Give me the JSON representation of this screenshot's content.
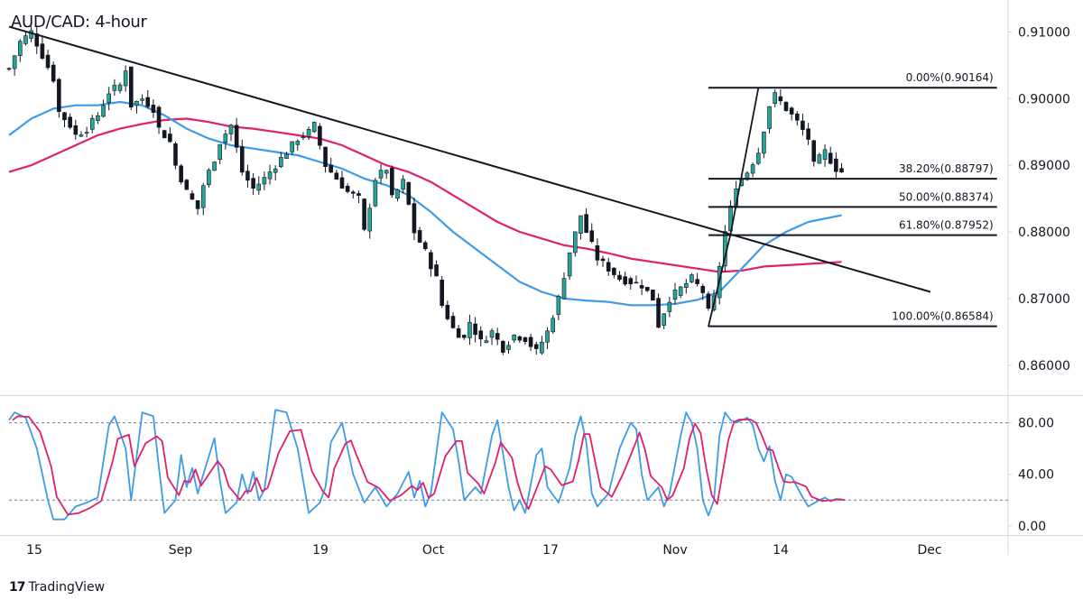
{
  "title": "AUD/CAD: 4-hour",
  "brand": {
    "icon": "tradingview-logo-icon",
    "name": "TradingView"
  },
  "colors": {
    "up": "#26a69a",
    "down": "#131722",
    "candle": "#131722",
    "ma_fast": "#3d9be9",
    "ma_slow": "#e0206a",
    "trendline": "#131722",
    "fib": "#131722",
    "stoch_k": "#3d9be9",
    "stoch_d": "#e0206a"
  },
  "chart_data": {
    "type": "line",
    "title": "AUD/CAD: 4-hour",
    "x_labels": [
      "15",
      "Sep",
      "19",
      "Oct",
      "17",
      "Nov",
      "14",
      "Dec"
    ],
    "y_ticks": [
      "0.91000",
      "0.90000",
      "0.89000",
      "0.88000",
      "0.87000",
      "0.86000"
    ],
    "ylim": [
      0.8555,
      0.9148
    ],
    "price_path": [
      [
        0,
        0.9045
      ],
      [
        2,
        0.9085
      ],
      [
        4,
        0.91
      ],
      [
        6,
        0.9065
      ],
      [
        8,
        0.903
      ],
      [
        9,
        0.898
      ],
      [
        11,
        0.896
      ],
      [
        12,
        0.8945
      ],
      [
        14,
        0.8955
      ],
      [
        16,
        0.8975
      ],
      [
        18,
        0.901
      ],
      [
        20,
        0.902
      ],
      [
        21,
        0.9045
      ],
      [
        22,
        0.899
      ],
      [
        24,
        0.9
      ],
      [
        26,
        0.8985
      ],
      [
        27,
        0.8955
      ],
      [
        29,
        0.8935
      ],
      [
        30,
        0.89
      ],
      [
        32,
        0.886
      ],
      [
        34,
        0.8835
      ],
      [
        35,
        0.887
      ],
      [
        37,
        0.891
      ],
      [
        38,
        0.8935
      ],
      [
        40,
        0.896
      ],
      [
        42,
        0.889
      ],
      [
        44,
        0.8865
      ],
      [
        46,
        0.888
      ],
      [
        48,
        0.89
      ],
      [
        50,
        0.892
      ],
      [
        52,
        0.894
      ],
      [
        54,
        0.895
      ],
      [
        55,
        0.896
      ],
      [
        57,
        0.89
      ],
      [
        59,
        0.888
      ],
      [
        61,
        0.886
      ],
      [
        63,
        0.885
      ],
      [
        64,
        0.88
      ],
      [
        66,
        0.888
      ],
      [
        68,
        0.8895
      ],
      [
        69,
        0.885
      ],
      [
        71,
        0.8875
      ],
      [
        72,
        0.884
      ],
      [
        73,
        0.88
      ],
      [
        75,
        0.877
      ],
      [
        77,
        0.873
      ],
      [
        78,
        0.869
      ],
      [
        80,
        0.8655
      ],
      [
        82,
        0.864
      ],
      [
        83,
        0.8665
      ],
      [
        85,
        0.8635
      ],
      [
        87,
        0.865
      ],
      [
        89,
        0.8625
      ],
      [
        91,
        0.8645
      ],
      [
        93,
        0.864
      ],
      [
        95,
        0.862
      ],
      [
        97,
        0.865
      ],
      [
        99,
        0.87
      ],
      [
        101,
        0.877
      ],
      [
        103,
        0.8825
      ],
      [
        104,
        0.88
      ],
      [
        106,
        0.876
      ],
      [
        108,
        0.8745
      ],
      [
        110,
        0.873
      ],
      [
        112,
        0.8725
      ],
      [
        114,
        0.872
      ],
      [
        116,
        0.87
      ],
      [
        117,
        0.866
      ],
      [
        119,
        0.87
      ],
      [
        121,
        0.8715
      ],
      [
        123,
        0.873
      ],
      [
        125,
        0.871
      ],
      [
        126,
        0.868
      ],
      [
        127,
        0.87
      ],
      [
        129,
        0.88
      ],
      [
        131,
        0.887
      ],
      [
        133,
        0.889
      ],
      [
        135,
        0.892
      ],
      [
        137,
        0.899
      ],
      [
        138,
        0.9005
      ],
      [
        140,
        0.8985
      ],
      [
        142,
        0.8965
      ],
      [
        144,
        0.894
      ],
      [
        145,
        0.89
      ],
      [
        147,
        0.892
      ],
      [
        149,
        0.8895
      ],
      [
        150,
        0.889
      ]
    ],
    "trendline": [
      [
        0,
        0.9108
      ],
      [
        166,
        0.871
      ]
    ],
    "fib_swing_line": [
      [
        126,
        0.8658
      ],
      [
        130,
        0.8797
      ],
      [
        135,
        0.9016
      ]
    ],
    "fib_levels": [
      {
        "label": "0.00%(0.90164)",
        "value": 0.90164
      },
      {
        "label": "38.20%(0.88797)",
        "value": 0.88797
      },
      {
        "label": "50.00%(0.88374)",
        "value": 0.88374
      },
      {
        "label": "61.80%(0.87952)",
        "value": 0.87952
      },
      {
        "label": "100.00%(0.86584)",
        "value": 0.86584
      }
    ],
    "fib_x_range": [
      126,
      178
    ],
    "ma_fast": [
      [
        0,
        0.8945
      ],
      [
        4,
        0.897
      ],
      [
        8,
        0.8985
      ],
      [
        12,
        0.899
      ],
      [
        16,
        0.899
      ],
      [
        20,
        0.8995
      ],
      [
        24,
        0.899
      ],
      [
        28,
        0.8975
      ],
      [
        32,
        0.8955
      ],
      [
        36,
        0.894
      ],
      [
        40,
        0.893
      ],
      [
        44,
        0.8925
      ],
      [
        48,
        0.892
      ],
      [
        52,
        0.8915
      ],
      [
        56,
        0.8905
      ],
      [
        60,
        0.8895
      ],
      [
        64,
        0.888
      ],
      [
        68,
        0.887
      ],
      [
        72,
        0.8855
      ],
      [
        76,
        0.883
      ],
      [
        80,
        0.88
      ],
      [
        84,
        0.8775
      ],
      [
        88,
        0.875
      ],
      [
        92,
        0.8725
      ],
      [
        96,
        0.871
      ],
      [
        100,
        0.87
      ],
      [
        104,
        0.8697
      ],
      [
        108,
        0.8695
      ],
      [
        112,
        0.869
      ],
      [
        116,
        0.869
      ],
      [
        120,
        0.8692
      ],
      [
        124,
        0.8698
      ],
      [
        128,
        0.871
      ],
      [
        132,
        0.8745
      ],
      [
        136,
        0.878
      ],
      [
        140,
        0.88
      ],
      [
        144,
        0.8815
      ],
      [
        150,
        0.8825
      ]
    ],
    "ma_slow": [
      [
        0,
        0.889
      ],
      [
        4,
        0.89
      ],
      [
        8,
        0.8915
      ],
      [
        12,
        0.893
      ],
      [
        16,
        0.8945
      ],
      [
        20,
        0.8955
      ],
      [
        24,
        0.8962
      ],
      [
        28,
        0.8968
      ],
      [
        32,
        0.897
      ],
      [
        36,
        0.8965
      ],
      [
        40,
        0.8958
      ],
      [
        44,
        0.8955
      ],
      [
        48,
        0.895
      ],
      [
        52,
        0.8945
      ],
      [
        56,
        0.894
      ],
      [
        60,
        0.893
      ],
      [
        64,
        0.8915
      ],
      [
        68,
        0.89
      ],
      [
        72,
        0.889
      ],
      [
        76,
        0.8875
      ],
      [
        80,
        0.8855
      ],
      [
        84,
        0.8835
      ],
      [
        88,
        0.8815
      ],
      [
        92,
        0.88
      ],
      [
        96,
        0.879
      ],
      [
        100,
        0.878
      ],
      [
        104,
        0.8775
      ],
      [
        108,
        0.8768
      ],
      [
        112,
        0.876
      ],
      [
        116,
        0.8755
      ],
      [
        120,
        0.875
      ],
      [
        124,
        0.8745
      ],
      [
        128,
        0.874
      ],
      [
        132,
        0.8742
      ],
      [
        136,
        0.8748
      ],
      [
        140,
        0.875
      ],
      [
        144,
        0.8752
      ],
      [
        150,
        0.8755
      ]
    ],
    "stochastic": {
      "ylim": [
        -5,
        100
      ],
      "y_ticks": [
        "80.00",
        "40.00",
        "0.00"
      ],
      "levels": [
        80,
        20
      ],
      "k_path": [
        [
          0,
          82
        ],
        [
          1,
          88
        ],
        [
          3,
          84
        ],
        [
          5,
          60
        ],
        [
          7,
          20
        ],
        [
          8,
          5
        ],
        [
          10,
          5
        ],
        [
          12,
          15
        ],
        [
          14,
          18
        ],
        [
          16,
          22
        ],
        [
          18,
          78
        ],
        [
          19,
          85
        ],
        [
          21,
          60
        ],
        [
          22,
          20
        ],
        [
          24,
          88
        ],
        [
          26,
          85
        ],
        [
          27,
          45
        ],
        [
          28,
          10
        ],
        [
          30,
          20
        ],
        [
          31,
          55
        ],
        [
          32,
          30
        ],
        [
          33,
          45
        ],
        [
          34,
          25
        ],
        [
          35,
          40
        ],
        [
          37,
          68
        ],
        [
          38,
          35
        ],
        [
          39,
          10
        ],
        [
          41,
          18
        ],
        [
          42,
          40
        ],
        [
          43,
          25
        ],
        [
          44,
          42
        ],
        [
          45,
          20
        ],
        [
          46,
          28
        ],
        [
          48,
          90
        ],
        [
          50,
          88
        ],
        [
          52,
          60
        ],
        [
          54,
          10
        ],
        [
          56,
          18
        ],
        [
          57,
          30
        ],
        [
          58,
          65
        ],
        [
          60,
          80
        ],
        [
          61,
          60
        ],
        [
          62,
          40
        ],
        [
          64,
          18
        ],
        [
          66,
          30
        ],
        [
          68,
          15
        ],
        [
          70,
          25
        ],
        [
          72,
          42
        ],
        [
          73,
          22
        ],
        [
          74,
          35
        ],
        [
          75,
          15
        ],
        [
          76,
          25
        ],
        [
          78,
          88
        ],
        [
          80,
          75
        ],
        [
          81,
          50
        ],
        [
          82,
          20
        ],
        [
          84,
          30
        ],
        [
          85,
          25
        ],
        [
          87,
          70
        ],
        [
          88,
          82
        ],
        [
          90,
          30
        ],
        [
          91,
          12
        ],
        [
          92,
          20
        ],
        [
          93,
          10
        ],
        [
          95,
          55
        ],
        [
          96,
          60
        ],
        [
          97,
          30
        ],
        [
          99,
          18
        ],
        [
          101,
          45
        ],
        [
          102,
          70
        ],
        [
          103,
          85
        ],
        [
          104,
          65
        ],
        [
          105,
          25
        ],
        [
          106,
          15
        ],
        [
          108,
          25
        ],
        [
          110,
          60
        ],
        [
          112,
          80
        ],
        [
          113,
          75
        ],
        [
          114,
          40
        ],
        [
          115,
          20
        ],
        [
          117,
          30
        ],
        [
          118,
          15
        ],
        [
          119,
          25
        ],
        [
          121,
          70
        ],
        [
          122,
          88
        ],
        [
          123,
          80
        ],
        [
          124,
          60
        ],
        [
          125,
          20
        ],
        [
          126,
          8
        ],
        [
          127,
          20
        ],
        [
          128,
          70
        ],
        [
          129,
          88
        ],
        [
          130,
          82
        ],
        [
          131,
          80
        ],
        [
          133,
          84
        ],
        [
          134,
          78
        ],
        [
          135,
          60
        ],
        [
          136,
          50
        ],
        [
          137,
          62
        ],
        [
          138,
          35
        ],
        [
          139,
          20
        ],
        [
          140,
          40
        ],
        [
          141,
          38
        ],
        [
          143,
          22
        ],
        [
          144,
          15
        ],
        [
          146,
          20
        ],
        [
          147,
          22
        ],
        [
          148,
          19
        ],
        [
          149,
          21
        ],
        [
          150,
          20
        ]
      ]
    }
  }
}
